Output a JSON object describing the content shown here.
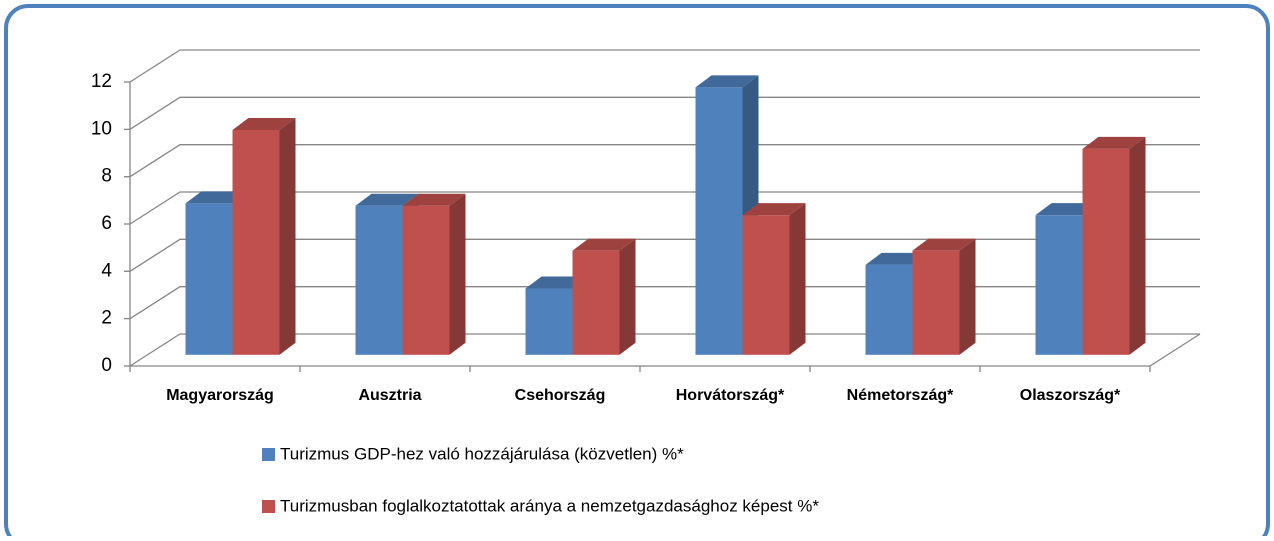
{
  "chart_data": {
    "type": "bar3d",
    "categories": [
      "Magyarország",
      "Ausztria",
      "Csehország",
      "Horvátország*",
      "Németország*",
      "Olaszország*"
    ],
    "series": [
      {
        "name": "Turizmus GDP-hez való hozzájárulása (közvetlen) %*",
        "color": "#4f81bd",
        "values": [
          6.4,
          6.3,
          2.8,
          11.3,
          3.8,
          5.9
        ]
      },
      {
        "name": "Turizmusban foglalkoztatottak aránya a nemzetgazdasághoz képest %*",
        "color": "#c0504d",
        "values": [
          9.5,
          6.3,
          4.4,
          5.9,
          4.4,
          8.7
        ]
      }
    ],
    "ylim": [
      0,
      12
    ],
    "yticks": [
      0,
      2,
      4,
      6,
      8,
      10,
      12
    ],
    "grid": true,
    "legend": "bottom"
  }
}
